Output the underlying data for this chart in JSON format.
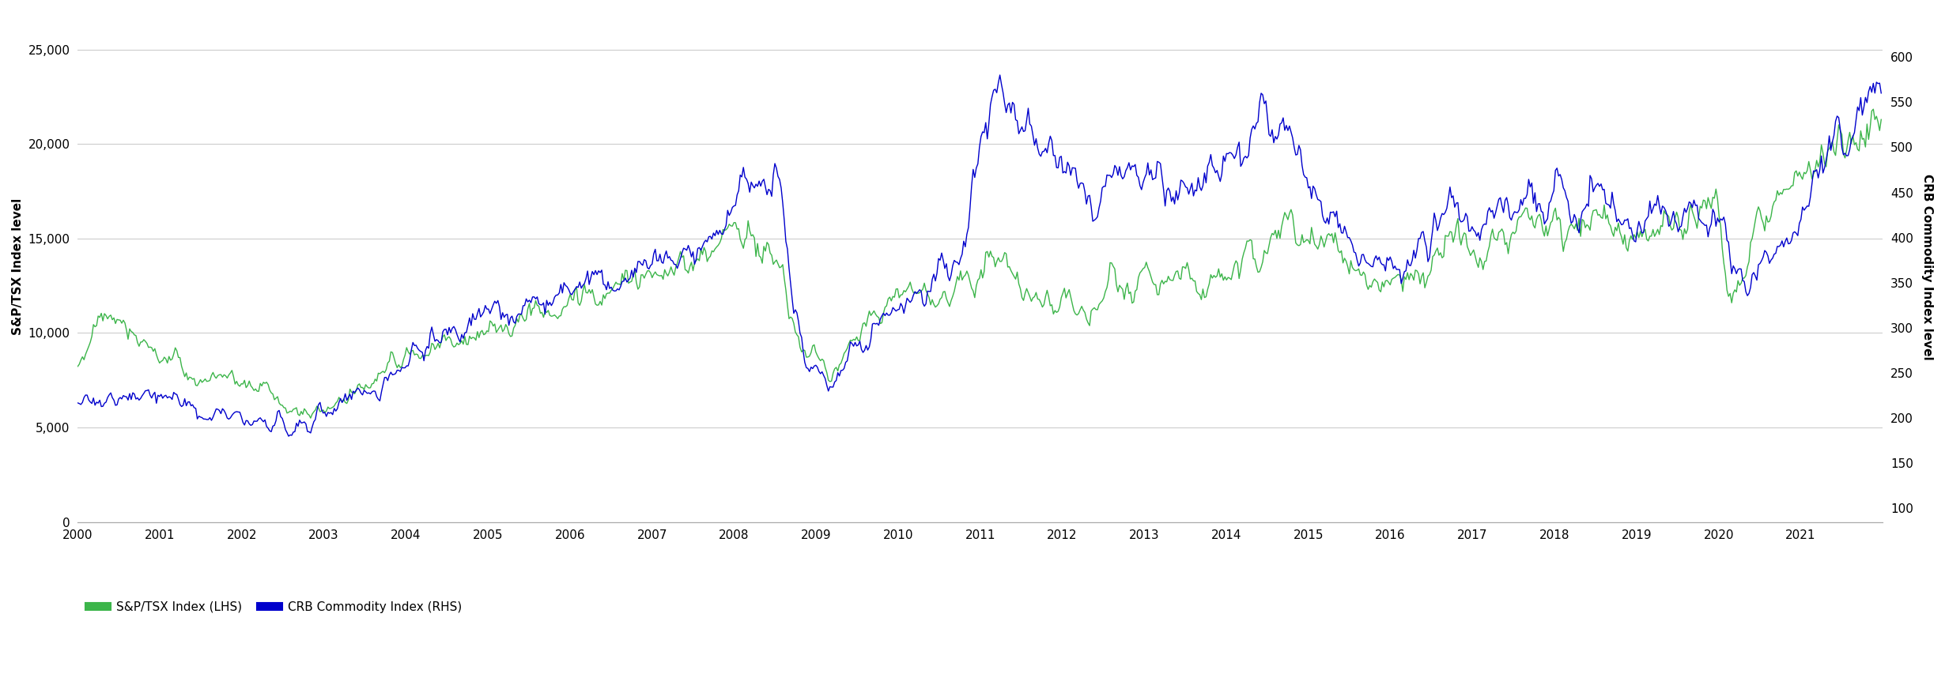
{
  "tsx_color": "#3cb54a",
  "crb_color": "#0000cc",
  "lhs_ylabel": "S&P/TSX Index level",
  "rhs_ylabel": "CRB Commodity Index level",
  "lhs_yticks": [
    0,
    5000,
    10000,
    15000,
    20000,
    25000
  ],
  "rhs_yticks": [
    100,
    150,
    200,
    250,
    300,
    350,
    400,
    450,
    500,
    550,
    600
  ],
  "lhs_ylim": [
    0,
    27000
  ],
  "rhs_ylim": [
    85,
    650
  ],
  "legend_labels": [
    "S&P/TSX Index (LHS)",
    "CRB Commodity Index (RHS)"
  ],
  "background_color": "#ffffff",
  "grid_color": "#cccccc",
  "line_width": 1.0,
  "ylabel_fontsize": 11,
  "tick_fontsize": 11
}
